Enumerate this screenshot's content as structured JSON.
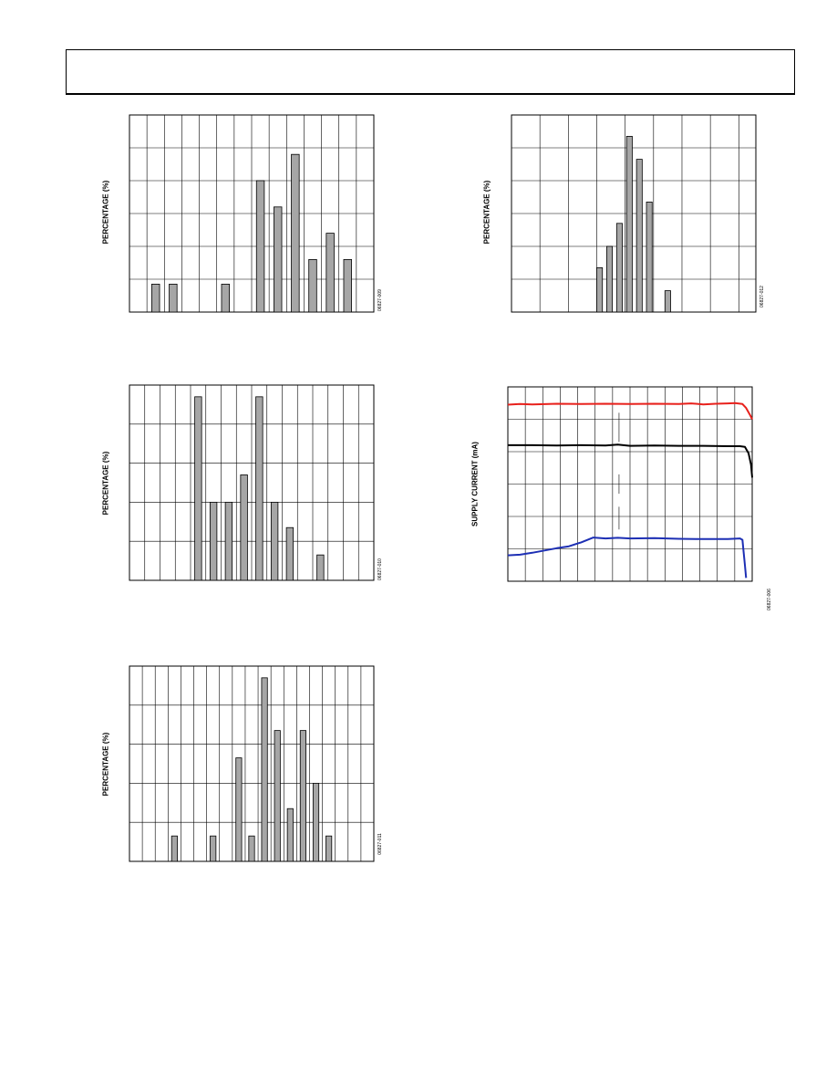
{
  "colors": {
    "bar_fill": "#a6a6a6",
    "grid": "#000000",
    "series_red": "#e8211c",
    "series_black": "#000000",
    "series_blue": "#1d2fb4"
  },
  "chart_data": [
    {
      "type": "bar",
      "ylabel": "PERCENTAGE (%)",
      "figure_id": "06827-009",
      "xlim": [
        0,
        14
      ],
      "ylim": [
        0,
        6
      ],
      "x": [
        1.5,
        2.5,
        5.5,
        7.5,
        8.5,
        9.5,
        10.5,
        11.5,
        12.5
      ],
      "values": [
        0.85,
        0.85,
        0.85,
        4.0,
        3.2,
        4.8,
        1.6,
        2.4,
        1.6
      ],
      "grid": {
        "xdiv": 14,
        "ydiv": 6
      }
    },
    {
      "type": "bar",
      "ylabel": "PERCENTAGE (%)",
      "figure_id": "06827-012",
      "xlim": [
        0,
        8.6
      ],
      "ylim": [
        0,
        6
      ],
      "x": [
        3.1,
        3.45,
        3.8,
        4.15,
        4.5,
        4.85,
        5.5
      ],
      "values": [
        1.35,
        2.0,
        2.7,
        5.35,
        4.65,
        3.35,
        0.65
      ],
      "grid": {
        "xdiv": 8.6,
        "ydiv": 6
      }
    },
    {
      "type": "bar",
      "ylabel": "PERCENTAGE (%)",
      "figure_id": "06827-010",
      "xlim": [
        0,
        16
      ],
      "ylim": [
        0,
        5
      ],
      "x": [
        4.5,
        5.5,
        6.5,
        7.5,
        8.5,
        9.5,
        10.5,
        12.5
      ],
      "values": [
        4.7,
        2.0,
        2.0,
        2.7,
        4.7,
        2.0,
        1.35,
        0.65
      ],
      "grid": {
        "xdiv": 16,
        "ydiv": 5
      }
    },
    {
      "type": "line",
      "ylabel": "SUPPLY CURRENT (mA)",
      "figure_id": "06827-006",
      "xlim": [
        0,
        100
      ],
      "ylim": [
        0,
        6
      ],
      "grid": {
        "xdiv": 14,
        "ydiv": 6
      },
      "series": [
        {
          "color": "red",
          "x": [
            0,
            5,
            10,
            20,
            30,
            40,
            50,
            60,
            70,
            75,
            80,
            85,
            90,
            93,
            96,
            97.5,
            99,
            100
          ],
          "y": [
            5.45,
            5.47,
            5.46,
            5.48,
            5.47,
            5.48,
            5.47,
            5.48,
            5.47,
            5.49,
            5.46,
            5.48,
            5.49,
            5.5,
            5.47,
            5.35,
            5.15,
            5.0
          ]
        },
        {
          "color": "black",
          "x": [
            0,
            10,
            20,
            30,
            40,
            45,
            50,
            60,
            70,
            80,
            90,
            95,
            97,
            98.5,
            99.5,
            100
          ],
          "y": [
            4.2,
            4.2,
            4.19,
            4.2,
            4.19,
            4.22,
            4.18,
            4.19,
            4.18,
            4.18,
            4.17,
            4.17,
            4.15,
            3.95,
            3.6,
            3.2
          ]
        },
        {
          "color": "blue",
          "x": [
            0,
            5,
            10,
            15,
            20,
            25,
            30,
            35,
            40,
            45,
            50,
            60,
            70,
            80,
            90,
            95,
            96,
            96.5,
            97,
            97.5
          ],
          "y": [
            0.8,
            0.82,
            0.88,
            0.95,
            1.02,
            1.08,
            1.2,
            1.35,
            1.32,
            1.34,
            1.32,
            1.33,
            1.31,
            1.3,
            1.3,
            1.32,
            1.28,
            0.9,
            0.5,
            0.1
          ]
        }
      ],
      "annotation_marks": [
        {
          "x": 45.5,
          "y_from": 5.2,
          "y_to": 4.3
        },
        {
          "x": 45.5,
          "y_from": 3.3,
          "y_to": 2.7
        },
        {
          "x": 45.5,
          "y_from": 2.3,
          "y_to": 1.6
        }
      ]
    },
    {
      "type": "bar",
      "ylabel": "PERCENTAGE (%)",
      "figure_id": "06827-011",
      "xlim": [
        0,
        19
      ],
      "ylim": [
        0,
        5
      ],
      "x": [
        3.5,
        6.5,
        8.5,
        9.5,
        10.5,
        11.5,
        12.5,
        13.5,
        14.5,
        15.5
      ],
      "values": [
        0.65,
        0.65,
        2.65,
        0.65,
        4.7,
        3.35,
        1.35,
        3.35,
        2.0,
        0.65
      ],
      "grid": {
        "xdiv": 19,
        "ydiv": 5
      }
    }
  ]
}
